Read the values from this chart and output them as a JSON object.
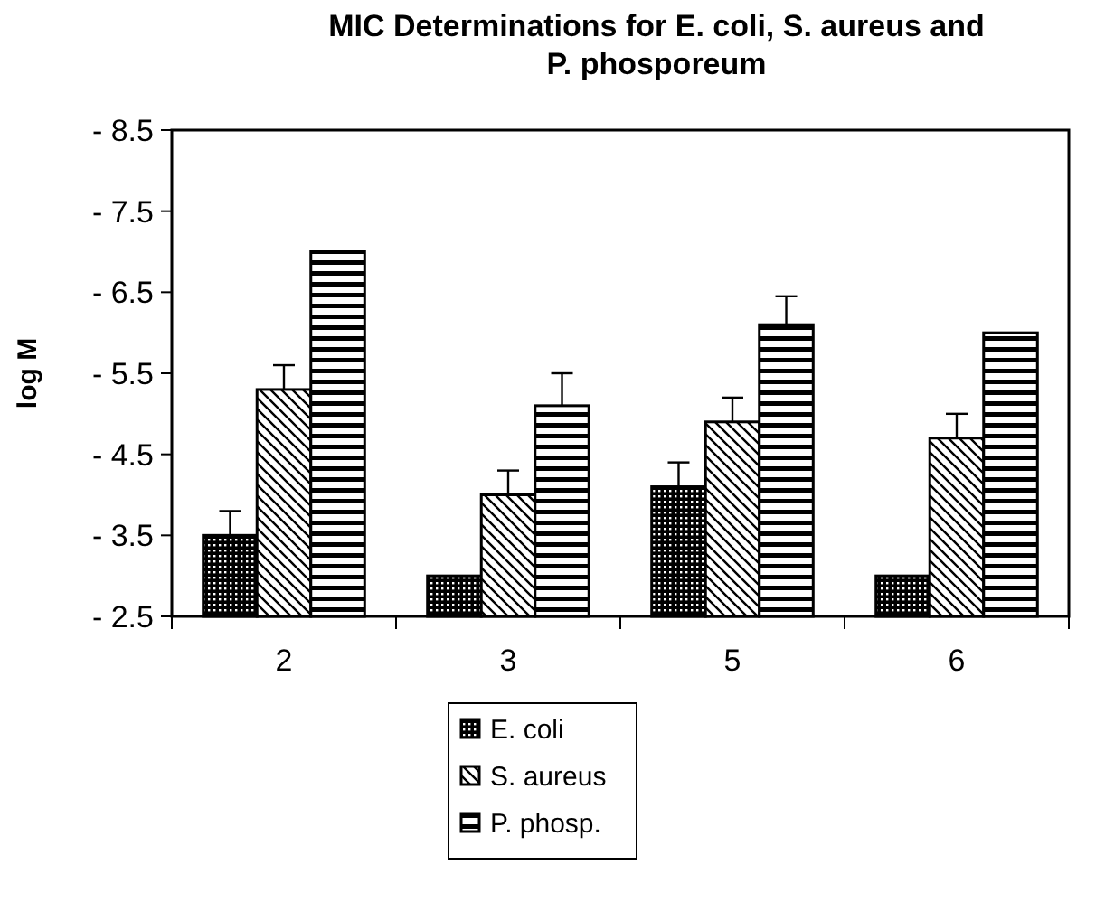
{
  "chart_data": {
    "type": "bar",
    "title": "MIC Determinations  for E. coli, S. aureus and P. phosporeum",
    "ylabel": "log M",
    "categories": [
      "2",
      "3",
      "5",
      "6"
    ],
    "series": [
      {
        "name": "E. coli",
        "color": "#000000",
        "values": [
          -3.5,
          -3.0,
          -4.1,
          -3.0
        ],
        "errors": [
          [
            -3.5,
            -3.8
          ],
          null,
          [
            -4.1,
            -4.4
          ],
          null
        ]
      },
      {
        "name": "S. aureus",
        "color": "#000000",
        "values": [
          -5.3,
          -4.0,
          -4.9,
          -4.7
        ],
        "errors": [
          [
            -5.3,
            -5.6
          ],
          [
            -4.0,
            -4.3
          ],
          [
            -4.9,
            -5.2
          ],
          [
            -4.7,
            -5.0
          ]
        ]
      },
      {
        "name": "P. phosp.",
        "color": "#000000",
        "values": [
          -7.0,
          -5.1,
          -6.1,
          -6.0
        ],
        "errors": [
          null,
          [
            -5.1,
            -5.5
          ],
          [
            -6.1,
            -6.45
          ],
          null
        ]
      }
    ],
    "ylim": [
      -2.5,
      -8.5
    ],
    "yticks": [
      -8.5,
      -7.5,
      -6.5,
      -5.5,
      -4.5,
      -3.5,
      -2.5
    ],
    "grid": false,
    "legend": "bottom"
  }
}
